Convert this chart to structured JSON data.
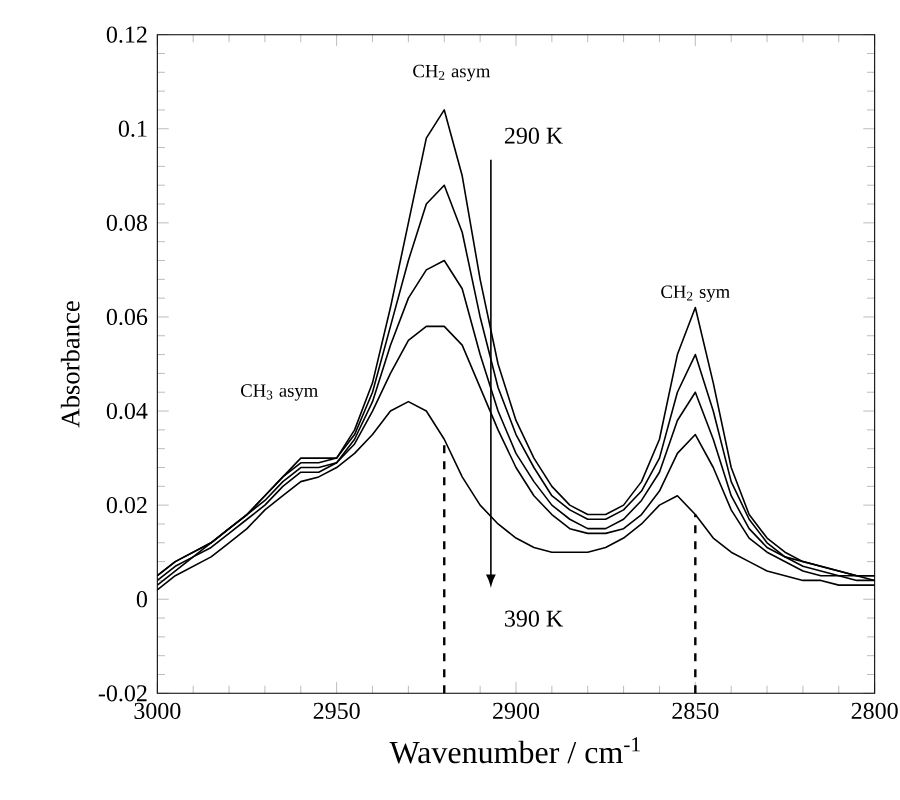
{
  "chart_data": {
    "type": "line",
    "xlabel": "Wavenumber / cm$^{-1}$",
    "ylabel": "Absorbance",
    "x": [
      3000,
      2995,
      2990,
      2985,
      2980,
      2975,
      2970,
      2965,
      2960,
      2955,
      2950,
      2945,
      2940,
      2935,
      2930,
      2925,
      2920,
      2915,
      2910,
      2905,
      2900,
      2895,
      2890,
      2885,
      2880,
      2875,
      2870,
      2865,
      2860,
      2855,
      2850,
      2845,
      2840,
      2835,
      2830,
      2825,
      2820,
      2815,
      2810,
      2805,
      2800
    ],
    "series": [
      {
        "color": "#000000",
        "values": [
          0.005,
          0.008,
          0.01,
          0.012,
          0.015,
          0.018,
          0.022,
          0.026,
          0.03,
          0.03,
          0.03,
          0.036,
          0.046,
          0.062,
          0.08,
          0.098,
          0.104,
          0.09,
          0.068,
          0.05,
          0.038,
          0.03,
          0.024,
          0.02,
          0.018,
          0.018,
          0.02,
          0.025,
          0.034,
          0.052,
          0.062,
          0.046,
          0.028,
          0.018,
          0.013,
          0.01,
          0.008,
          0.007,
          0.006,
          0.005,
          0.005
        ]
      },
      {
        "color": "#000000",
        "values": [
          0.005,
          0.008,
          0.01,
          0.012,
          0.015,
          0.018,
          0.022,
          0.026,
          0.029,
          0.029,
          0.03,
          0.035,
          0.044,
          0.058,
          0.072,
          0.084,
          0.088,
          0.078,
          0.06,
          0.045,
          0.035,
          0.028,
          0.022,
          0.019,
          0.017,
          0.017,
          0.019,
          0.023,
          0.03,
          0.044,
          0.052,
          0.04,
          0.025,
          0.017,
          0.012,
          0.009,
          0.008,
          0.007,
          0.006,
          0.005,
          0.005
        ]
      },
      {
        "color": "#000000",
        "values": [
          0.004,
          0.007,
          0.009,
          0.012,
          0.015,
          0.018,
          0.021,
          0.025,
          0.028,
          0.028,
          0.029,
          0.034,
          0.042,
          0.054,
          0.064,
          0.07,
          0.072,
          0.066,
          0.052,
          0.04,
          0.031,
          0.025,
          0.02,
          0.017,
          0.015,
          0.015,
          0.017,
          0.021,
          0.027,
          0.038,
          0.044,
          0.034,
          0.022,
          0.015,
          0.011,
          0.009,
          0.007,
          0.006,
          0.005,
          0.005,
          0.004
        ]
      },
      {
        "color": "#000000",
        "values": [
          0.003,
          0.006,
          0.009,
          0.011,
          0.014,
          0.017,
          0.02,
          0.024,
          0.027,
          0.027,
          0.029,
          0.033,
          0.04,
          0.048,
          0.055,
          0.058,
          0.058,
          0.054,
          0.045,
          0.036,
          0.028,
          0.022,
          0.018,
          0.015,
          0.014,
          0.014,
          0.015,
          0.018,
          0.023,
          0.031,
          0.035,
          0.028,
          0.019,
          0.013,
          0.01,
          0.008,
          0.006,
          0.005,
          0.005,
          0.004,
          0.004
        ]
      },
      {
        "color": "#000000",
        "values": [
          0.002,
          0.005,
          0.007,
          0.009,
          0.012,
          0.015,
          0.019,
          0.022,
          0.025,
          0.026,
          0.028,
          0.031,
          0.035,
          0.04,
          0.042,
          0.04,
          0.034,
          0.026,
          0.02,
          0.016,
          0.013,
          0.011,
          0.01,
          0.01,
          0.01,
          0.011,
          0.013,
          0.016,
          0.02,
          0.022,
          0.018,
          0.013,
          0.01,
          0.008,
          0.006,
          0.005,
          0.004,
          0.004,
          0.003,
          0.003,
          0.003
        ]
      }
    ],
    "xlim": [
      3000,
      2800
    ],
    "ylim": [
      -0.02,
      0.12
    ],
    "xticks": [
      3000,
      2950,
      2900,
      2850,
      2800
    ],
    "yticks": [
      -0.02,
      0,
      0.02,
      0.04,
      0.06,
      0.08,
      0.1,
      0.12
    ],
    "ref_lines": [
      {
        "axis": "x",
        "value": 2920,
        "line_style": "dashed"
      },
      {
        "axis": "x",
        "value": 2850,
        "line_style": "dashed"
      }
    ],
    "annotations": [
      "CH$_{3}$ asym",
      "CH$_{2}$ asym",
      "CH$_{2}$ sym",
      "290 K",
      "390 K"
    ],
    "marker": "none",
    "line_style": "solid",
    "grid": false
  }
}
